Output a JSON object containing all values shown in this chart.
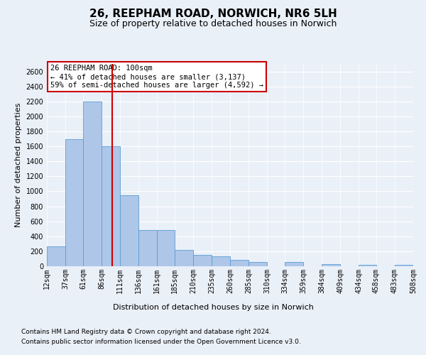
{
  "title1": "26, REEPHAM ROAD, NORWICH, NR6 5LH",
  "title2": "Size of property relative to detached houses in Norwich",
  "xlabel": "Distribution of detached houses by size in Norwich",
  "ylabel": "Number of detached properties",
  "footnote1": "Contains HM Land Registry data © Crown copyright and database right 2024.",
  "footnote2": "Contains public sector information licensed under the Open Government Licence v3.0.",
  "annotation_line1": "26 REEPHAM ROAD: 100sqm",
  "annotation_line2": "← 41% of detached houses are smaller (3,137)",
  "annotation_line3": "59% of semi-detached houses are larger (4,592) →",
  "bin_edges": [
    12,
    37,
    61,
    86,
    111,
    136,
    161,
    185,
    210,
    235,
    260,
    285,
    310,
    334,
    359,
    384,
    409,
    434,
    458,
    483,
    508
  ],
  "bar_heights": [
    270,
    1700,
    2200,
    1600,
    950,
    480,
    480,
    220,
    150,
    130,
    90,
    60,
    0,
    60,
    0,
    30,
    0,
    20,
    0,
    20
  ],
  "bar_color": "#aec6e8",
  "bar_edge_color": "#5a9fd4",
  "vline_color": "#cc0000",
  "vline_x": 100,
  "ylim": [
    0,
    2700
  ],
  "yticks": [
    0,
    200,
    400,
    600,
    800,
    1000,
    1200,
    1400,
    1600,
    1800,
    2000,
    2200,
    2400,
    2600
  ],
  "background_color": "#eaf0f8",
  "grid_color": "#ffffff",
  "annotation_box_color": "#ffffff",
  "annotation_box_edge": "#cc0000",
  "title1_fontsize": 11,
  "title2_fontsize": 9,
  "ylabel_fontsize": 8,
  "tick_fontsize": 7,
  "annotation_fontsize": 7.5,
  "footnote_fontsize": 6.5
}
